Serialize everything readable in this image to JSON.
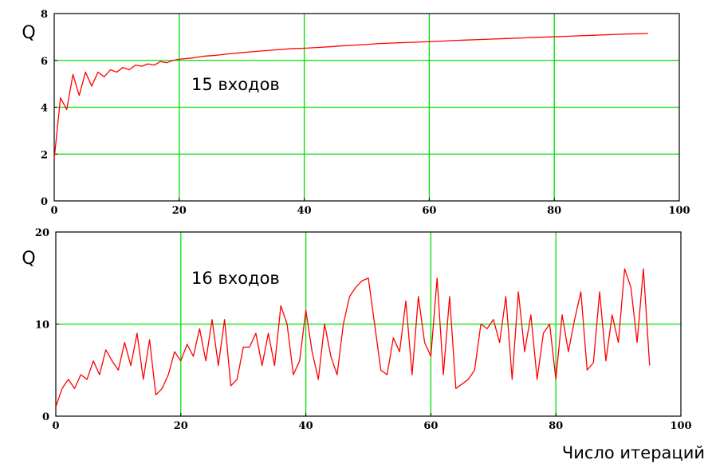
{
  "chart_data": [
    {
      "type": "line",
      "ylabel": "Q",
      "annotation": "15 входов",
      "xlim": [
        0,
        100
      ],
      "ylim": [
        0,
        8
      ],
      "xticks": [
        "0",
        "20",
        "40",
        "60",
        "80",
        "100"
      ],
      "yticks": [
        "0",
        "2",
        "4",
        "6",
        "8"
      ],
      "grid": true,
      "series": [
        {
          "color": "#ff0000",
          "x": [
            0,
            1,
            2,
            3,
            4,
            5,
            6,
            7,
            8,
            9,
            10,
            11,
            12,
            13,
            14,
            15,
            16,
            17,
            18,
            19,
            20,
            22,
            24,
            26,
            28,
            30,
            32,
            34,
            36,
            38,
            40,
            42,
            44,
            46,
            48,
            50,
            52,
            54,
            56,
            58,
            60,
            62,
            64,
            66,
            68,
            70,
            72,
            74,
            76,
            78,
            80,
            82,
            84,
            86,
            88,
            90,
            92,
            94,
            95
          ],
          "y": [
            1.8,
            4.4,
            3.9,
            5.4,
            4.5,
            5.5,
            4.9,
            5.5,
            5.3,
            5.6,
            5.5,
            5.7,
            5.6,
            5.8,
            5.75,
            5.85,
            5.8,
            5.95,
            5.9,
            6.0,
            6.05,
            6.1,
            6.18,
            6.22,
            6.28,
            6.33,
            6.38,
            6.42,
            6.46,
            6.5,
            6.52,
            6.55,
            6.58,
            6.62,
            6.65,
            6.68,
            6.72,
            6.74,
            6.76,
            6.78,
            6.8,
            6.82,
            6.85,
            6.87,
            6.89,
            6.91,
            6.93,
            6.95,
            6.97,
            6.99,
            7.01,
            7.03,
            7.05,
            7.07,
            7.09,
            7.11,
            7.13,
            7.14,
            7.15
          ]
        }
      ]
    },
    {
      "type": "line",
      "ylabel": "Q",
      "annotation": "16 входов",
      "xlim": [
        0,
        100
      ],
      "ylim": [
        0,
        20
      ],
      "xticks": [
        "0",
        "20",
        "40",
        "60",
        "80",
        "100"
      ],
      "yticks": [
        "0",
        "10",
        "20"
      ],
      "grid": true,
      "series": [
        {
          "color": "#ff0000",
          "x": [
            0,
            1,
            2,
            3,
            4,
            5,
            6,
            7,
            8,
            9,
            10,
            11,
            12,
            13,
            14,
            15,
            16,
            17,
            18,
            19,
            20,
            21,
            22,
            23,
            24,
            25,
            26,
            27,
            28,
            29,
            30,
            31,
            32,
            33,
            34,
            35,
            36,
            37,
            38,
            39,
            40,
            41,
            42,
            43,
            44,
            45,
            46,
            47,
            48,
            49,
            50,
            51,
            52,
            53,
            54,
            55,
            56,
            57,
            58,
            59,
            60,
            61,
            62,
            63,
            64,
            65,
            66,
            67,
            68,
            69,
            70,
            71,
            72,
            73,
            74,
            75,
            76,
            77,
            78,
            79,
            80,
            81,
            82,
            83,
            84,
            85,
            86,
            87,
            88,
            89,
            90,
            91,
            92,
            93,
            94,
            95
          ],
          "y": [
            1,
            3,
            4,
            3,
            4.5,
            4,
            6,
            4.5,
            7.2,
            6,
            5,
            8,
            5.5,
            9,
            4,
            8.3,
            2.3,
            3,
            4.5,
            7,
            6,
            7.8,
            6.5,
            9.5,
            6,
            10.5,
            5.5,
            10.5,
            3.3,
            4,
            7.5,
            7.5,
            9,
            5.5,
            9,
            5.5,
            12,
            10,
            4.5,
            6,
            11.5,
            7,
            4,
            10,
            6.5,
            4.5,
            10,
            13,
            14,
            14.7,
            15,
            10,
            5,
            4.5,
            8.5,
            7,
            12.5,
            4.5,
            13,
            8,
            6.5,
            15,
            4.5,
            13,
            3,
            3.5,
            4,
            5,
            10,
            9.5,
            10.5,
            8,
            13,
            4,
            13.5,
            7,
            11,
            4,
            9,
            10,
            4,
            11,
            7,
            10.5,
            13.5,
            5,
            5.8,
            13.5,
            6,
            11,
            8,
            16,
            14,
            8,
            16,
            5.5
          ]
        }
      ]
    }
  ],
  "x_axis_title": "Число итераций"
}
